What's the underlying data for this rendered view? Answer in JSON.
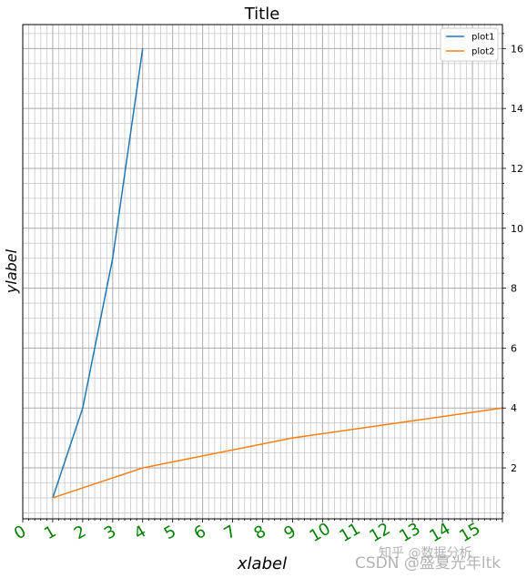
{
  "chart_data": {
    "type": "line",
    "title": "Title",
    "xlabel": "xlabel",
    "ylabel": "ylabel",
    "xlim": [
      0,
      16
    ],
    "ylim": [
      0.3,
      16.8
    ],
    "x_ticks": [
      "0",
      "1",
      "2",
      "3",
      "4",
      "5",
      "6",
      "7",
      "8",
      "9",
      "10",
      "11",
      "12",
      "13",
      "14",
      "15"
    ],
    "y_ticks": [
      "2",
      "4",
      "6",
      "8",
      "10",
      "12",
      "14",
      "16"
    ],
    "grid": true,
    "y_axis_side": "right",
    "legend_placement": "top-right",
    "series": [
      {
        "name": "plot1",
        "color": "#1f77b4",
        "x": [
          1,
          2,
          3,
          4
        ],
        "y": [
          1,
          4,
          9,
          16
        ]
      },
      {
        "name": "plot2",
        "color": "#ff7f0e",
        "x": [
          1,
          4,
          9,
          16
        ],
        "y": [
          1,
          2,
          3,
          4
        ]
      }
    ],
    "x_tick_color": "#008000"
  },
  "watermark": {
    "line1": "知乎 @数据分析",
    "line2": "CSDN @盛夏光年ltk"
  }
}
